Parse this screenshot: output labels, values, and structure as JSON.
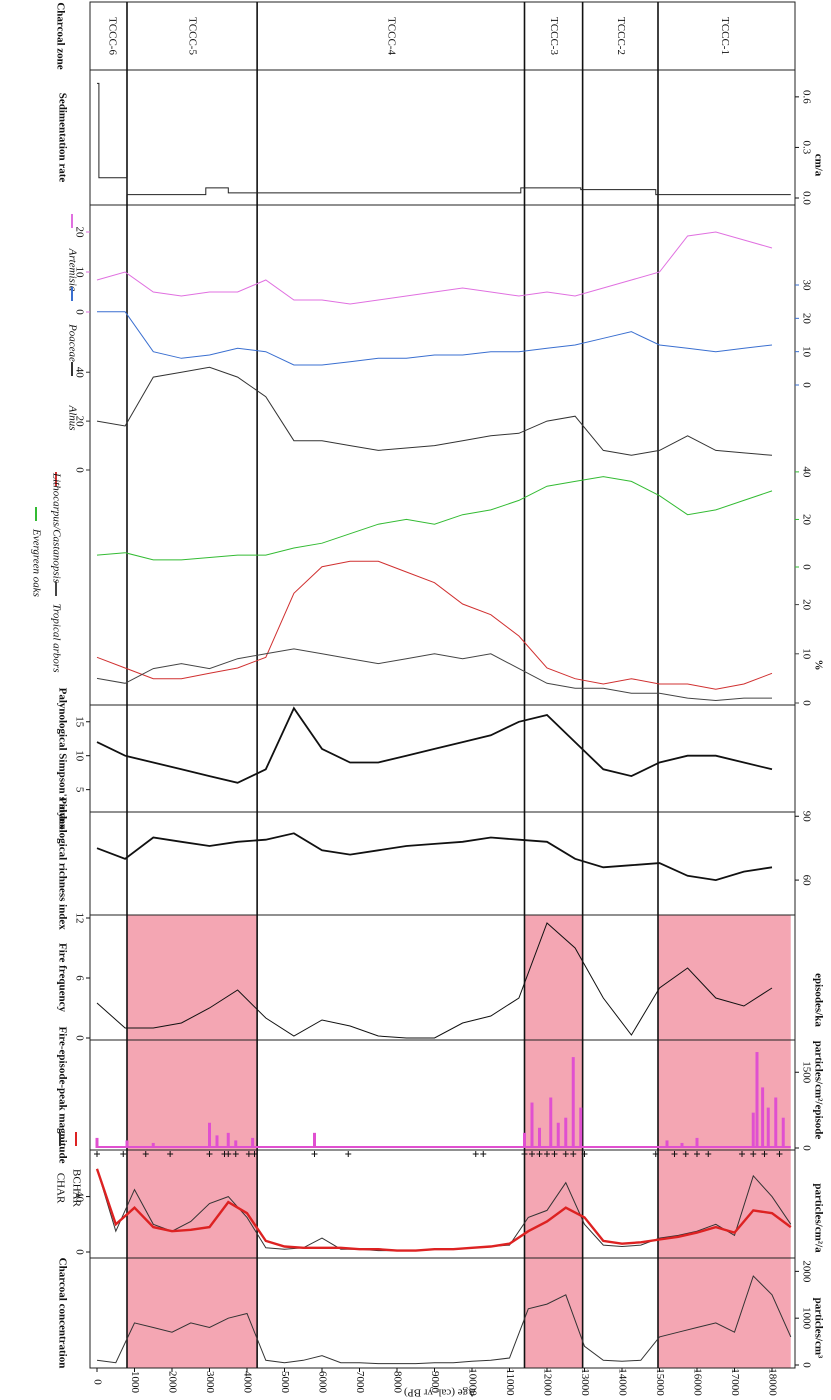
{
  "chart_data": [
    {
      "type": "zones",
      "title": "Charcoal zone",
      "labels": [
        "TCCC-6",
        "TCCC-5",
        "TCCC-4",
        "TCCC-3",
        "TCCC-2",
        "TCCC-1"
      ],
      "boundaries": [
        800,
        4270,
        11400,
        12950,
        14960
      ],
      "shaded": [
        "TCCC-5",
        "TCCC-3",
        "TCCC-1"
      ],
      "shade_color": "#f4a6b3",
      "xlim": [
        0,
        18500
      ]
    },
    {
      "type": "line",
      "title": "Sedimentation rate",
      "unit": "cm/a",
      "xlim": [
        0,
        18500
      ],
      "ylim": [
        0,
        0.7
      ],
      "yticks": [
        {
          "value": 0,
          "label": "0.0"
        },
        {
          "value": 0.3,
          "label": "0.3"
        },
        {
          "value": 0.6,
          "label": "0.6"
        }
      ],
      "yside": "right",
      "x": [
        0,
        50,
        50,
        800,
        800,
        2900,
        2900,
        3500,
        3500,
        11300,
        11300,
        12900,
        12900,
        14900,
        14900,
        18500
      ],
      "series": [
        {
          "color": "#222222",
          "values": [
            0.68,
            0.68,
            0.12,
            0.12,
            0.02,
            0.02,
            0.06,
            0.06,
            0.03,
            0.03,
            0.06,
            0.06,
            0.05,
            0.05,
            0.02,
            0.02
          ]
        }
      ]
    },
    {
      "type": "line",
      "unit": "%",
      "xlim": [
        0,
        18500
      ],
      "x": [
        0,
        750,
        1500,
        2250,
        3000,
        3750,
        4500,
        5250,
        6000,
        6750,
        7500,
        8250,
        9000,
        9750,
        10500,
        11250,
        12000,
        12750,
        13500,
        14250,
        15000,
        15750,
        16500,
        17250,
        18000
      ],
      "series": [
        {
          "name": "Artemisia",
          "color": "#e070e0",
          "ylim": [
            0,
            25
          ],
          "yticks": [
            0,
            10,
            20
          ],
          "yside": "left",
          "values": [
            8,
            10,
            5,
            4,
            5,
            5,
            8,
            3,
            3,
            2,
            3,
            4,
            5,
            6,
            5,
            4,
            5,
            4,
            6,
            8,
            10,
            19,
            20,
            18,
            16
          ]
        },
        {
          "name": "Poaceae",
          "color": "#3a6fd0",
          "ylim": [
            0,
            30
          ],
          "yticks": [
            0,
            10,
            20,
            30
          ],
          "yside": "right",
          "values": [
            22,
            22,
            10,
            8,
            9,
            11,
            10,
            6,
            6,
            7,
            8,
            8,
            9,
            9,
            10,
            10,
            11,
            12,
            14,
            16,
            12,
            11,
            10,
            11,
            12
          ]
        },
        {
          "name": "Alnus",
          "color": "#333333",
          "ylim": [
            0,
            45
          ],
          "yticks": [
            0,
            20,
            40
          ],
          "yside": "left",
          "values": [
            20,
            18,
            38,
            40,
            42,
            38,
            30,
            12,
            12,
            10,
            8,
            9,
            10,
            12,
            14,
            15,
            20,
            22,
            8,
            6,
            8,
            14,
            8,
            7,
            6
          ]
        },
        {
          "name": "Evergreen oaks",
          "color": "#33bb33",
          "ylim": [
            0,
            45
          ],
          "yticks": [
            0,
            20,
            40
          ],
          "yside": "right",
          "values": [
            5,
            6,
            3,
            3,
            4,
            5,
            5,
            8,
            10,
            14,
            18,
            20,
            18,
            22,
            24,
            28,
            34,
            36,
            38,
            36,
            30,
            22,
            24,
            28,
            32
          ]
        },
        {
          "name": "Lithocarpus/Castanopsis",
          "color": "#d03030",
          "ylim": [
            0,
            30
          ],
          "values": [
            8,
            6,
            4,
            4,
            5,
            6,
            8,
            20,
            25,
            26,
            26,
            24,
            22,
            18,
            16,
            12,
            6,
            4,
            3,
            4,
            3,
            3,
            2,
            3,
            5
          ]
        },
        {
          "name": "Tropical arbors",
          "color": "#444444",
          "ylim": [
            0,
            25
          ],
          "yticks": [
            0,
            10,
            20
          ],
          "yside": "right",
          "values": [
            5,
            4,
            7,
            8,
            7,
            9,
            10,
            11,
            10,
            9,
            8,
            9,
            10,
            9,
            10,
            7,
            4,
            3,
            3,
            2,
            2,
            1,
            0.5,
            1,
            1
          ]
        }
      ]
    },
    {
      "type": "line",
      "title": "Palynological Simpson's index",
      "xlim": [
        0,
        18500
      ],
      "ylim": [
        2,
        18.5
      ],
      "yticks": [
        5,
        10,
        15
      ],
      "yside": "left",
      "x": [
        0,
        750,
        1500,
        2250,
        3000,
        3750,
        4500,
        5250,
        6000,
        6750,
        7500,
        8250,
        9000,
        9750,
        10500,
        11250,
        12000,
        12750,
        13500,
        14250,
        15000,
        15750,
        16500,
        17250,
        18000
      ],
      "series": [
        {
          "color": "#111111",
          "values": [
            12,
            10,
            9,
            8,
            7,
            6,
            8,
            17,
            11,
            9,
            9,
            10,
            11,
            12,
            13,
            15,
            16,
            12,
            8,
            7,
            9,
            10,
            10,
            9,
            8
          ]
        }
      ]
    },
    {
      "type": "line",
      "title": "Palynological richness index",
      "xlim": [
        0,
        18500
      ],
      "ylim": [
        45,
        92
      ],
      "yticks": [
        60,
        90
      ],
      "yside": "right",
      "x": [
        0,
        750,
        1500,
        2250,
        3000,
        3750,
        4500,
        5250,
        6000,
        6750,
        7500,
        8250,
        9000,
        9750,
        10500,
        11250,
        12000,
        12750,
        13500,
        14250,
        15000,
        15750,
        16500,
        17250,
        18000
      ],
      "series": [
        {
          "color": "#111111",
          "values": [
            75,
            70,
            80,
            78,
            76,
            78,
            79,
            82,
            74,
            72,
            74,
            76,
            77,
            78,
            80,
            79,
            78,
            70,
            66,
            67,
            68,
            62,
            60,
            64,
            66
          ]
        }
      ]
    },
    {
      "type": "line",
      "title": "Fire frequency",
      "unit": "episodes/ka",
      "xlim": [
        0,
        18500
      ],
      "ylim": [
        0,
        12
      ],
      "yticks": [
        0,
        6,
        12
      ],
      "yside": "left",
      "x": [
        0,
        750,
        1500,
        2250,
        3000,
        3750,
        4500,
        5250,
        6000,
        6750,
        7500,
        8250,
        9000,
        9750,
        10500,
        11250,
        12000,
        12750,
        13500,
        14250,
        15000,
        15750,
        16500,
        17250,
        18000
      ],
      "series": [
        {
          "color": "#111111",
          "values": [
            3.5,
            1,
            1,
            1.5,
            3,
            4.8,
            2,
            0.2,
            1.8,
            1.2,
            0.2,
            0,
            0,
            1.5,
            2.2,
            4,
            11.5,
            9,
            4,
            0.3,
            5,
            7,
            4,
            3.2,
            5
          ]
        }
      ]
    },
    {
      "type": "bar",
      "title": "Fire-episode-peak magnitude",
      "unit": "particles/cm²/episode",
      "color": "#e050d0",
      "xlim": [
        0,
        18500
      ],
      "ylim": [
        0,
        2000
      ],
      "yticks": [
        0,
        1500
      ],
      "yside": "right",
      "x": [
        0,
        800,
        1500,
        3000,
        3200,
        3500,
        3700,
        4150,
        5800,
        11400,
        11600,
        11800,
        12100,
        12300,
        12500,
        12700,
        12900,
        15200,
        15600,
        16000,
        17500,
        17600,
        17750,
        17900,
        18100,
        18300
      ],
      "values": [
        200,
        150,
        100,
        500,
        250,
        300,
        150,
        200,
        300,
        300,
        900,
        400,
        1000,
        500,
        600,
        1800,
        800,
        150,
        100,
        200,
        700,
        1900,
        1200,
        800,
        1000,
        600
      ],
      "episodes": [
        0,
        700,
        1300,
        1950,
        3000,
        3400,
        3500,
        3700,
        4050,
        4200,
        5800,
        6700,
        10100,
        10300,
        11400,
        11600,
        11800,
        12000,
        12200,
        12500,
        12700,
        13000,
        14900,
        15400,
        15700,
        16000,
        16300,
        17200,
        17500,
        17800,
        18200
      ]
    },
    {
      "type": "line",
      "unit": "particles/cm²/a",
      "xlim": [
        0,
        18500
      ],
      "ylim": [
        0,
        70
      ],
      "yticks": [
        0,
        40
      ],
      "yside": "left",
      "x": [
        0,
        500,
        1000,
        1500,
        2000,
        2500,
        3000,
        3500,
        4000,
        4500,
        5000,
        5500,
        6000,
        6500,
        7000,
        7500,
        8000,
        8500,
        9000,
        9500,
        10000,
        10500,
        11000,
        11500,
        12000,
        12500,
        13000,
        13500,
        14000,
        14500,
        15000,
        15500,
        16000,
        16500,
        17000,
        17500,
        18000,
        18500
      ],
      "series": [
        {
          "name": "CHAR",
          "color": "#333333",
          "values": [
            60,
            15,
            45,
            20,
            15,
            22,
            35,
            40,
            25,
            3,
            2,
            3,
            10,
            2,
            2,
            1,
            1,
            1,
            2,
            2,
            3,
            4,
            5,
            25,
            30,
            50,
            20,
            5,
            4,
            5,
            10,
            12,
            15,
            20,
            12,
            55,
            40,
            20
          ]
        },
        {
          "name": "BCHAR",
          "color": "#dd2222",
          "values": [
            60,
            20,
            32,
            18,
            15,
            16,
            18,
            36,
            28,
            8,
            4,
            3,
            3,
            3,
            2,
            2,
            1,
            1,
            2,
            2,
            3,
            4,
            6,
            15,
            22,
            32,
            25,
            8,
            6,
            7,
            9,
            11,
            14,
            18,
            14,
            30,
            28,
            18
          ]
        }
      ]
    },
    {
      "type": "line",
      "title": "Charcoal concentration",
      "unit": "particles/cm³",
      "xlabel": "Age (cal. yr BP)",
      "xlim": [
        0,
        18500
      ],
      "xticks": [
        0,
        1000,
        2000,
        3000,
        4000,
        5000,
        6000,
        7000,
        8000,
        9000,
        10000,
        11000,
        12000,
        13000,
        14000,
        15000,
        16000,
        17000,
        18000
      ],
      "ylim": [
        0,
        2200
      ],
      "yticks": [
        0,
        1000,
        2000
      ],
      "yside": "right",
      "x": [
        0,
        500,
        1000,
        1500,
        2000,
        2500,
        3000,
        3500,
        4000,
        4500,
        5000,
        5500,
        6000,
        6500,
        7000,
        7500,
        8000,
        8500,
        9000,
        9500,
        10000,
        10500,
        11000,
        11500,
        12000,
        12500,
        13000,
        13500,
        14000,
        14500,
        15000,
        15500,
        16000,
        16500,
        17000,
        17500,
        18000,
        18500
      ],
      "series": [
        {
          "color": "#333333",
          "values": [
            100,
            50,
            900,
            800,
            700,
            900,
            800,
            1000,
            1100,
            100,
            50,
            100,
            200,
            50,
            50,
            30,
            30,
            30,
            50,
            50,
            80,
            100,
            150,
            1200,
            1300,
            1500,
            400,
            100,
            80,
            100,
            600,
            700,
            800,
            900,
            700,
            1900,
            1500,
            600
          ]
        }
      ]
    }
  ]
}
